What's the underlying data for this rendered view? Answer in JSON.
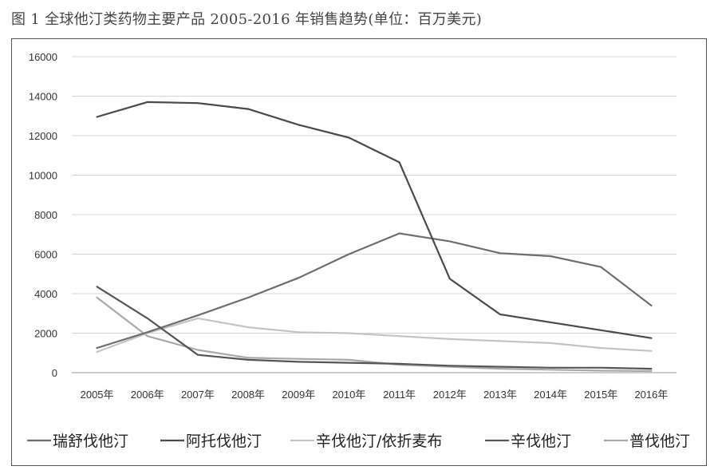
{
  "figure": {
    "title": "图 1  全球他汀类药物主要产品 2005-2016 年销售趋势(单位：百万美元)"
  },
  "chart_data": {
    "type": "line",
    "title": "图 1  全球他汀类药物主要产品 2005-2016 年销售趋势(单位：百万美元)",
    "xlabel": "",
    "ylabel": "",
    "ylim": [
      0,
      16000
    ],
    "yticks": [
      0,
      2000,
      4000,
      6000,
      8000,
      10000,
      12000,
      14000,
      16000
    ],
    "grid": "horizontal",
    "legend_position": "bottom",
    "categories": [
      "2005年",
      "2006年",
      "2007年",
      "2008年",
      "2009年",
      "2010年",
      "2011年",
      "2012年",
      "2013年",
      "2014年",
      "2015年",
      "2016年"
    ],
    "series": [
      {
        "name": "瑞舒伐他汀",
        "color": "#6d6d6d",
        "values": [
          1250,
          2050,
          2900,
          3800,
          4800,
          6000,
          7050,
          6650,
          6050,
          5900,
          5350,
          3400
        ]
      },
      {
        "name": "阿托伐他汀",
        "color": "#4a4a4a",
        "values": [
          12950,
          13700,
          13650,
          13350,
          12550,
          11900,
          10650,
          4750,
          2950,
          2550,
          2150,
          1750
        ]
      },
      {
        "name": "辛伐他汀/依折麦布",
        "color": "#c4c4c4",
        "values": [
          1050,
          2000,
          2750,
          2300,
          2050,
          2000,
          1850,
          1700,
          1600,
          1500,
          1250,
          1100
        ]
      },
      {
        "name": "辛伐他汀",
        "color": "#555555",
        "values": [
          4350,
          2750,
          900,
          650,
          550,
          500,
          450,
          350,
          300,
          250,
          250,
          200
        ]
      },
      {
        "name": "普伐他汀",
        "color": "#a8a8a8",
        "values": [
          3800,
          1850,
          1150,
          750,
          700,
          650,
          400,
          300,
          200,
          150,
          100,
          80
        ]
      }
    ]
  }
}
